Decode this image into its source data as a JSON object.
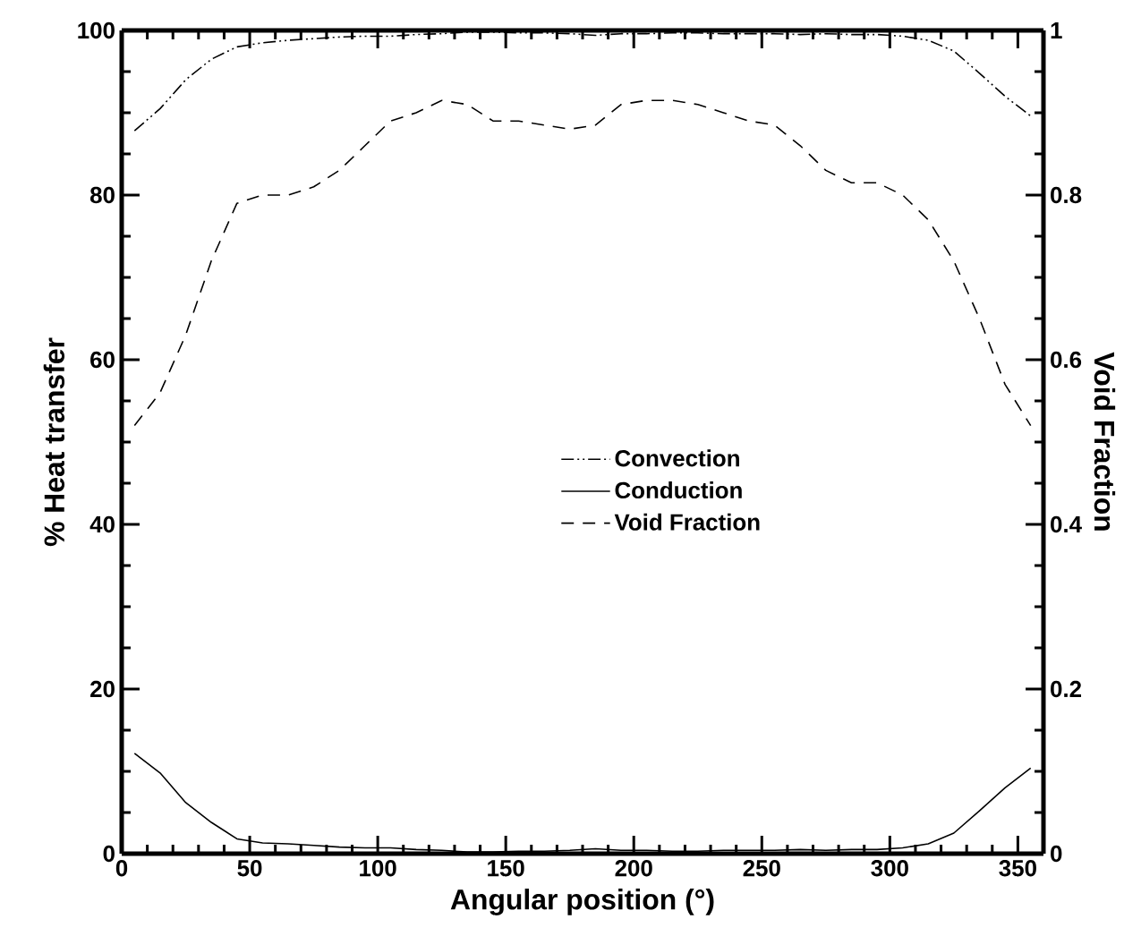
{
  "chart_data": {
    "type": "line",
    "xlabel": "Angular position (°)",
    "ylabel": "% Heat transfer",
    "y2label": "Void Fraction",
    "x": [
      5,
      15,
      25,
      35,
      45,
      55,
      65,
      75,
      85,
      95,
      105,
      115,
      125,
      135,
      145,
      155,
      165,
      175,
      185,
      195,
      205,
      215,
      225,
      235,
      245,
      255,
      265,
      275,
      285,
      295,
      305,
      315,
      325,
      335,
      345,
      355
    ],
    "series": [
      {
        "name": "Convection",
        "color": "#000000",
        "line_style": "dashdotdot",
        "values": [
          87.8,
          90.5,
          94,
          96.5,
          98,
          98.5,
          98.8,
          99,
          99.2,
          99.3,
          99.3,
          99.5,
          99.6,
          99.8,
          99.8,
          99.7,
          99.7,
          99.6,
          99.4,
          99.6,
          99.6,
          99.7,
          99.7,
          99.6,
          99.6,
          99.6,
          99.5,
          99.6,
          99.5,
          99.5,
          99.3,
          98.8,
          97.5,
          94.8,
          92,
          89.6
        ]
      },
      {
        "name": "Conduction",
        "color": "#000000",
        "line_style": "solid",
        "values": [
          12.2,
          9.8,
          6.2,
          3.8,
          1.8,
          1.3,
          1.2,
          1,
          0.8,
          0.7,
          0.7,
          0.5,
          0.4,
          0.2,
          0.2,
          0.3,
          0.3,
          0.4,
          0.6,
          0.4,
          0.4,
          0.3,
          0.3,
          0.4,
          0.4,
          0.4,
          0.5,
          0.4,
          0.5,
          0.5,
          0.7,
          1.2,
          2.5,
          5.2,
          8,
          10.4
        ]
      },
      {
        "name": "Void Fraction",
        "color": "#000000",
        "line_style": "dashed",
        "axis": "y2",
        "values": [
          0.52,
          0.56,
          0.63,
          0.72,
          0.79,
          0.8,
          0.8,
          0.81,
          0.83,
          0.86,
          0.89,
          0.9,
          0.915,
          0.91,
          0.89,
          0.89,
          0.885,
          0.88,
          0.885,
          0.91,
          0.915,
          0.915,
          0.91,
          0.9,
          0.89,
          0.885,
          0.86,
          0.83,
          0.815,
          0.815,
          0.8,
          0.77,
          0.72,
          0.65,
          0.57,
          0.52
        ]
      }
    ],
    "xlim": [
      0,
      360
    ],
    "xticks": [
      0,
      50,
      100,
      150,
      200,
      250,
      300,
      350
    ],
    "ylim": [
      0,
      100
    ],
    "yticks": [
      0,
      20,
      40,
      60,
      80,
      100
    ],
    "y2lim": [
      0,
      1
    ],
    "y2ticks": [
      0,
      0.2,
      0.4,
      0.6,
      0.8,
      1
    ],
    "grid": false,
    "legend": "right"
  }
}
